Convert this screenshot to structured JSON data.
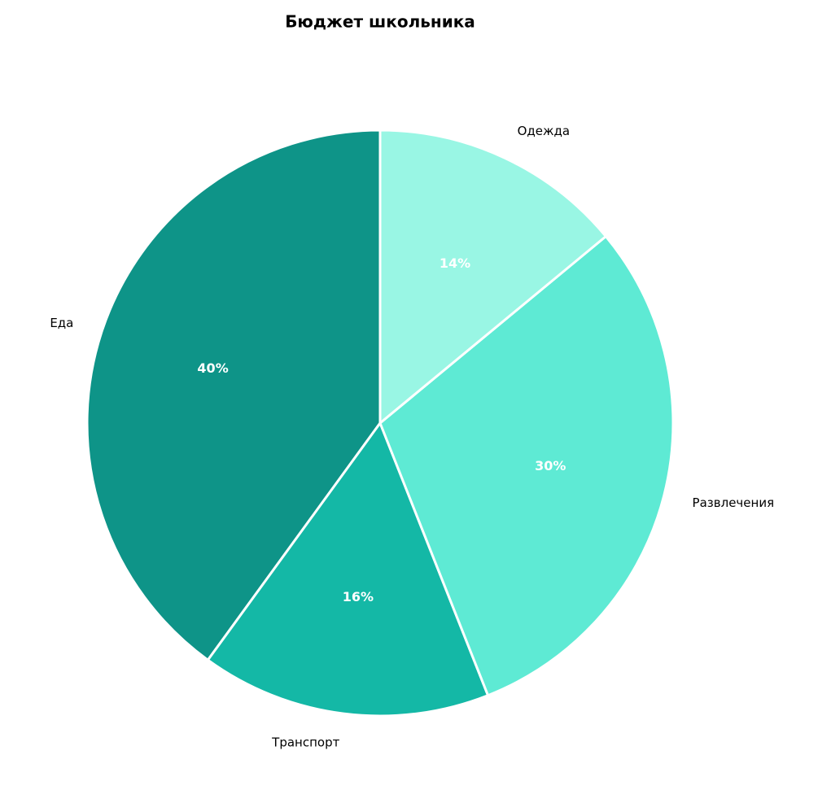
{
  "chart_data": {
    "type": "pie",
    "title": "Бюджет школьника",
    "categories": [
      "Еда",
      "Транспорт",
      "Развлечения",
      "Одежда"
    ],
    "values": [
      40,
      16,
      30,
      14
    ],
    "value_labels": [
      "40%",
      "16%",
      "30%",
      "14%"
    ],
    "colors": [
      "#0e9488",
      "#14b8a6",
      "#5eead4",
      "#99f6e4"
    ]
  }
}
